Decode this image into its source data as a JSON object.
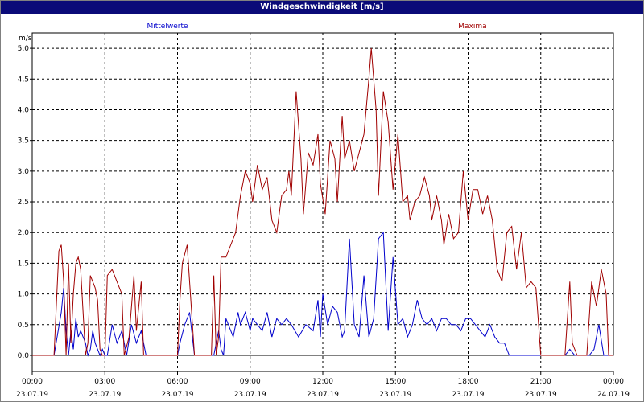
{
  "window": {
    "title": "Windgeschwindigkeit [m/s]"
  },
  "colors": {
    "titlebar": "#0a0a78",
    "grid": "#000000",
    "series_mean": "#0000cc",
    "series_max": "#a00000"
  },
  "chart_data": {
    "type": "line",
    "title": "Windgeschwindigkeit [m/s]",
    "ylabel": "m/s",
    "xlabel": "",
    "ylim": [
      0,
      5.25
    ],
    "xlim": [
      0,
      24
    ],
    "grid": true,
    "legend_placement": "top",
    "yticks": [
      {
        "value": 0,
        "label": "0,0"
      },
      {
        "value": 0.5,
        "label": "0,5"
      },
      {
        "value": 1.0,
        "label": "1,0"
      },
      {
        "value": 1.5,
        "label": "1,5"
      },
      {
        "value": 2.0,
        "label": "2,0"
      },
      {
        "value": 2.5,
        "label": "2,5"
      },
      {
        "value": 3.0,
        "label": "3,0"
      },
      {
        "value": 3.5,
        "label": "3,5"
      },
      {
        "value": 4.0,
        "label": "4,0"
      },
      {
        "value": 4.5,
        "label": "4,5"
      },
      {
        "value": 5.0,
        "label": "5,0"
      }
    ],
    "xticks": [
      {
        "value": 0,
        "time": "00:00",
        "date": "23.07.19"
      },
      {
        "value": 3,
        "time": "03:00",
        "date": "23.07.19"
      },
      {
        "value": 6,
        "time": "06:00",
        "date": "23.07.19"
      },
      {
        "value": 9,
        "time": "09:00",
        "date": "23.07.19"
      },
      {
        "value": 12,
        "time": "12:00",
        "date": "23.07.19"
      },
      {
        "value": 15,
        "time": "15:00",
        "date": "23.07.19"
      },
      {
        "value": 18,
        "time": "18:00",
        "date": "23.07.19"
      },
      {
        "value": 21,
        "time": "21:00",
        "date": "23.07.19"
      },
      {
        "value": 24,
        "time": "00:00",
        "date": "24.07.19"
      }
    ],
    "series": [
      {
        "name": "Mittelwerte",
        "color": "#0000cc",
        "points": [
          [
            0,
            0
          ],
          [
            0.9,
            0
          ],
          [
            1.2,
            0.7
          ],
          [
            1.3,
            1.1
          ],
          [
            1.4,
            0.4
          ],
          [
            1.5,
            0
          ],
          [
            1.6,
            0.4
          ],
          [
            1.7,
            0.1
          ],
          [
            1.8,
            0.6
          ],
          [
            1.9,
            0.3
          ],
          [
            2.0,
            0.4
          ],
          [
            2.1,
            0.3
          ],
          [
            2.2,
            0.2
          ],
          [
            2.3,
            0
          ],
          [
            2.4,
            0.1
          ],
          [
            2.5,
            0.4
          ],
          [
            2.6,
            0.2
          ],
          [
            2.7,
            0.1
          ],
          [
            2.8,
            0
          ],
          [
            2.9,
            0.1
          ],
          [
            3.0,
            0
          ],
          [
            3.1,
            0
          ],
          [
            3.3,
            0.5
          ],
          [
            3.5,
            0.2
          ],
          [
            3.7,
            0.4
          ],
          [
            3.9,
            0
          ],
          [
            4.1,
            0.5
          ],
          [
            4.3,
            0.2
          ],
          [
            4.5,
            0.4
          ],
          [
            4.7,
            0
          ],
          [
            4.9,
            0
          ],
          [
            6.0,
            0
          ],
          [
            6.1,
            0.2
          ],
          [
            6.3,
            0.5
          ],
          [
            6.5,
            0.7
          ],
          [
            6.7,
            0
          ],
          [
            6.9,
            0
          ],
          [
            7.5,
            0
          ],
          [
            7.7,
            0.4
          ],
          [
            7.8,
            0.1
          ],
          [
            7.9,
            0
          ],
          [
            8.0,
            0.6
          ],
          [
            8.2,
            0.4
          ],
          [
            8.3,
            0.3
          ],
          [
            8.5,
            0.7
          ],
          [
            8.6,
            0.5
          ],
          [
            8.8,
            0.7
          ],
          [
            9.0,
            0.4
          ],
          [
            9.1,
            0.6
          ],
          [
            9.3,
            0.5
          ],
          [
            9.5,
            0.4
          ],
          [
            9.7,
            0.7
          ],
          [
            9.9,
            0.3
          ],
          [
            10.1,
            0.6
          ],
          [
            10.3,
            0.5
          ],
          [
            10.5,
            0.6
          ],
          [
            10.7,
            0.5
          ],
          [
            11.0,
            0.3
          ],
          [
            11.3,
            0.5
          ],
          [
            11.6,
            0.4
          ],
          [
            11.8,
            0.9
          ],
          [
            11.9,
            0.3
          ],
          [
            12.0,
            1.0
          ],
          [
            12.2,
            0.5
          ],
          [
            12.4,
            0.8
          ],
          [
            12.6,
            0.7
          ],
          [
            12.8,
            0.3
          ],
          [
            12.9,
            0.4
          ],
          [
            13.1,
            1.9
          ],
          [
            13.3,
            0.5
          ],
          [
            13.5,
            0.3
          ],
          [
            13.7,
            1.3
          ],
          [
            13.9,
            0.3
          ],
          [
            14.1,
            0.6
          ],
          [
            14.3,
            1.9
          ],
          [
            14.5,
            2.0
          ],
          [
            14.7,
            0.4
          ],
          [
            14.9,
            1.6
          ],
          [
            15.1,
            0.5
          ],
          [
            15.3,
            0.6
          ],
          [
            15.5,
            0.3
          ],
          [
            15.7,
            0.5
          ],
          [
            15.9,
            0.9
          ],
          [
            16.1,
            0.6
          ],
          [
            16.3,
            0.5
          ],
          [
            16.5,
            0.6
          ],
          [
            16.7,
            0.4
          ],
          [
            16.9,
            0.6
          ],
          [
            17.1,
            0.6
          ],
          [
            17.3,
            0.5
          ],
          [
            17.5,
            0.5
          ],
          [
            17.7,
            0.4
          ],
          [
            17.9,
            0.6
          ],
          [
            18.1,
            0.6
          ],
          [
            18.3,
            0.5
          ],
          [
            18.5,
            0.4
          ],
          [
            18.7,
            0.3
          ],
          [
            18.9,
            0.5
          ],
          [
            19.1,
            0.3
          ],
          [
            19.3,
            0.2
          ],
          [
            19.5,
            0.2
          ],
          [
            19.7,
            0
          ],
          [
            20.8,
            0
          ],
          [
            22.0,
            0
          ],
          [
            22.2,
            0.1
          ],
          [
            22.4,
            0
          ],
          [
            23.0,
            0
          ],
          [
            23.2,
            0.1
          ],
          [
            23.4,
            0.5
          ],
          [
            23.6,
            0
          ],
          [
            24.0,
            0
          ]
        ]
      },
      {
        "name": "Maxima",
        "color": "#a00000",
        "points": [
          [
            0,
            0
          ],
          [
            0.9,
            0
          ],
          [
            1.1,
            1.7
          ],
          [
            1.2,
            1.8
          ],
          [
            1.3,
            1.2
          ],
          [
            1.4,
            0
          ],
          [
            1.5,
            1.5
          ],
          [
            1.6,
            0.2
          ],
          [
            1.7,
            1.0
          ],
          [
            1.8,
            1.5
          ],
          [
            1.9,
            1.6
          ],
          [
            2.0,
            1.4
          ],
          [
            2.1,
            0.7
          ],
          [
            2.2,
            0
          ],
          [
            2.3,
            0.2
          ],
          [
            2.4,
            1.3
          ],
          [
            2.5,
            1.2
          ],
          [
            2.6,
            1.1
          ],
          [
            2.7,
            0.9
          ],
          [
            2.8,
            0.1
          ],
          [
            2.9,
            0
          ],
          [
            3.0,
            0
          ],
          [
            3.1,
            1.3
          ],
          [
            3.3,
            1.4
          ],
          [
            3.5,
            1.2
          ],
          [
            3.7,
            1.0
          ],
          [
            3.8,
            0
          ],
          [
            4.0,
            0.3
          ],
          [
            4.2,
            1.3
          ],
          [
            4.3,
            0.4
          ],
          [
            4.5,
            1.2
          ],
          [
            4.6,
            0
          ],
          [
            4.8,
            0
          ],
          [
            6.0,
            0
          ],
          [
            6.1,
            0.9
          ],
          [
            6.2,
            1.5
          ],
          [
            6.4,
            1.8
          ],
          [
            6.5,
            1.2
          ],
          [
            6.7,
            0
          ],
          [
            6.9,
            0
          ],
          [
            7.4,
            0
          ],
          [
            7.5,
            1.3
          ],
          [
            7.6,
            0
          ],
          [
            7.7,
            0.3
          ],
          [
            7.8,
            1.6
          ],
          [
            8.0,
            1.6
          ],
          [
            8.2,
            1.8
          ],
          [
            8.4,
            2.0
          ],
          [
            8.6,
            2.6
          ],
          [
            8.8,
            3.0
          ],
          [
            9.0,
            2.8
          ],
          [
            9.1,
            2.5
          ],
          [
            9.3,
            3.1
          ],
          [
            9.5,
            2.7
          ],
          [
            9.7,
            2.9
          ],
          [
            9.9,
            2.2
          ],
          [
            10.1,
            2.0
          ],
          [
            10.3,
            2.6
          ],
          [
            10.5,
            2.7
          ],
          [
            10.6,
            3.0
          ],
          [
            10.7,
            2.6
          ],
          [
            10.9,
            4.3
          ],
          [
            11.1,
            3.2
          ],
          [
            11.2,
            2.3
          ],
          [
            11.4,
            3.3
          ],
          [
            11.6,
            3.1
          ],
          [
            11.8,
            3.6
          ],
          [
            11.9,
            2.8
          ],
          [
            12.1,
            2.3
          ],
          [
            12.3,
            3.5
          ],
          [
            12.5,
            3.2
          ],
          [
            12.6,
            2.5
          ],
          [
            12.8,
            3.9
          ],
          [
            12.9,
            3.2
          ],
          [
            13.1,
            3.5
          ],
          [
            13.3,
            3.0
          ],
          [
            13.5,
            3.3
          ],
          [
            13.7,
            3.6
          ],
          [
            13.9,
            4.5
          ],
          [
            14.0,
            5.0
          ],
          [
            14.2,
            4.0
          ],
          [
            14.3,
            2.6
          ],
          [
            14.5,
            4.3
          ],
          [
            14.7,
            3.8
          ],
          [
            14.9,
            2.7
          ],
          [
            15.1,
            3.6
          ],
          [
            15.3,
            2.5
          ],
          [
            15.5,
            2.6
          ],
          [
            15.6,
            2.2
          ],
          [
            15.8,
            2.5
          ],
          [
            16.0,
            2.6
          ],
          [
            16.2,
            2.9
          ],
          [
            16.4,
            2.6
          ],
          [
            16.5,
            2.2
          ],
          [
            16.7,
            2.6
          ],
          [
            16.9,
            2.2
          ],
          [
            17.0,
            1.8
          ],
          [
            17.2,
            2.3
          ],
          [
            17.4,
            1.9
          ],
          [
            17.6,
            2.0
          ],
          [
            17.8,
            3.0
          ],
          [
            18.0,
            2.2
          ],
          [
            18.2,
            2.7
          ],
          [
            18.4,
            2.7
          ],
          [
            18.6,
            2.3
          ],
          [
            18.8,
            2.6
          ],
          [
            19.0,
            2.2
          ],
          [
            19.2,
            1.4
          ],
          [
            19.4,
            1.2
          ],
          [
            19.6,
            2.0
          ],
          [
            19.8,
            2.1
          ],
          [
            20.0,
            1.4
          ],
          [
            20.2,
            2.0
          ],
          [
            20.4,
            1.1
          ],
          [
            20.6,
            1.2
          ],
          [
            20.8,
            1.1
          ],
          [
            21.0,
            0
          ],
          [
            22.0,
            0
          ],
          [
            22.2,
            1.2
          ],
          [
            22.3,
            0.2
          ],
          [
            22.5,
            0
          ],
          [
            22.9,
            0
          ],
          [
            23.1,
            1.2
          ],
          [
            23.3,
            0.8
          ],
          [
            23.5,
            1.4
          ],
          [
            23.7,
            1.0
          ],
          [
            23.8,
            0
          ],
          [
            24.0,
            0
          ]
        ]
      }
    ]
  }
}
